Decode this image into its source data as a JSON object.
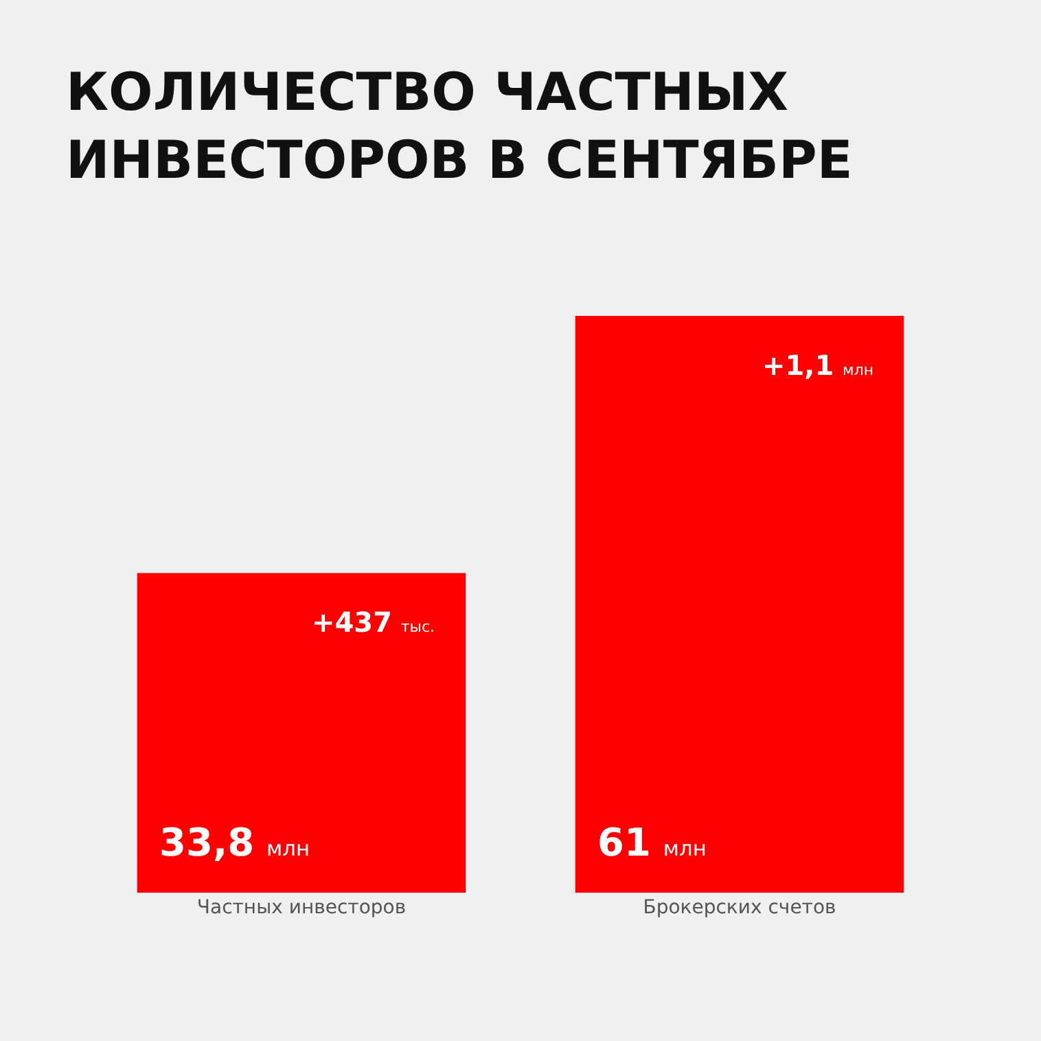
{
  "chart_data": {
    "type": "bar",
    "title": "КОЛИЧЕСТВО ЧАСТНЫХ\nИНВЕСТОРОВ В СЕНТЯБРЕ",
    "categories": [
      "Частных инвесторов",
      "Брокерских счетов"
    ],
    "values": [
      33.8,
      61
    ],
    "color": "#ff0000",
    "value_labels": [
      "33,8 млн",
      "61 млн"
    ],
    "annotations": [
      {
        "text": "+437 тыс.",
        "x": "Частных инвесторов",
        "y": 33.8
      },
      {
        "text": "+1,1 млн",
        "x": "Брокерских счетов",
        "y": 61
      }
    ]
  }
}
